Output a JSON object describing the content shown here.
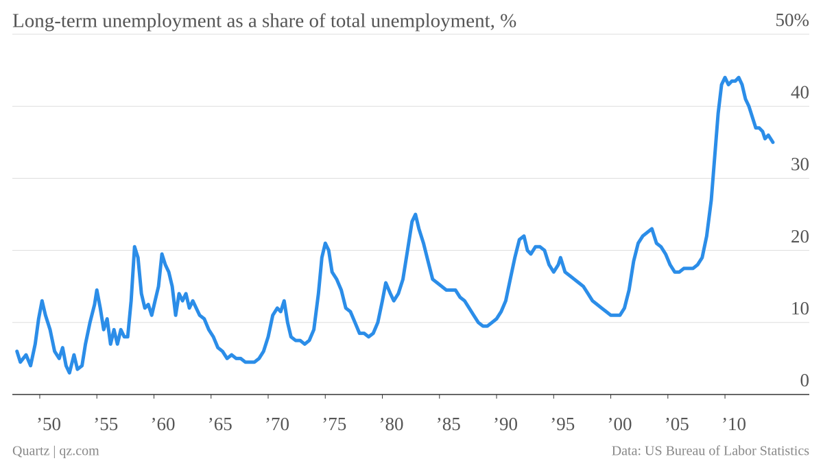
{
  "chart_data": {
    "type": "line",
    "title": "Long-term unemployment as a share of total unemployment, %",
    "source": "Data: US Bureau of Labor Statistics",
    "credit": "Quartz | qz.com",
    "grid": true,
    "xlim": [
      1947.6,
      2014.8
    ],
    "xticks": [
      {
        "value": 1950,
        "label": "’50"
      },
      {
        "value": 1955,
        "label": "’55"
      },
      {
        "value": 1960,
        "label": "’60"
      },
      {
        "value": 1965,
        "label": "’65"
      },
      {
        "value": 1970,
        "label": "’70"
      },
      {
        "value": 1975,
        "label": "’75"
      },
      {
        "value": 1980,
        "label": "’80"
      },
      {
        "value": 1985,
        "label": "’85"
      },
      {
        "value": 1990,
        "label": "’90"
      },
      {
        "value": 1995,
        "label": "’95"
      },
      {
        "value": 2000,
        "label": "’00"
      },
      {
        "value": 2005,
        "label": "’05"
      },
      {
        "value": 2010,
        "label": "’10"
      }
    ],
    "ylim": [
      0,
      50
    ],
    "yticks": [
      0,
      10,
      20,
      30,
      40,
      {
        "value": 50,
        "label": "50%"
      }
    ],
    "x": [
      1948.0,
      1948.3,
      1948.8,
      1949.2,
      1949.6,
      1949.9,
      1950.2,
      1950.5,
      1950.9,
      1951.3,
      1951.7,
      1952.0,
      1952.3,
      1952.6,
      1953.0,
      1953.3,
      1953.7,
      1954.0,
      1954.4,
      1954.8,
      1955.0,
      1955.3,
      1955.6,
      1955.9,
      1956.2,
      1956.5,
      1956.8,
      1957.1,
      1957.4,
      1957.7,
      1958.0,
      1958.3,
      1958.6,
      1958.9,
      1959.2,
      1959.5,
      1959.8,
      1960.1,
      1960.4,
      1960.7,
      1961.0,
      1961.3,
      1961.6,
      1961.9,
      1962.2,
      1962.5,
      1962.8,
      1963.1,
      1963.4,
      1963.7,
      1964.0,
      1964.4,
      1964.8,
      1965.2,
      1965.6,
      1966.0,
      1966.4,
      1966.8,
      1967.2,
      1967.6,
      1968.0,
      1968.4,
      1968.8,
      1969.2,
      1969.6,
      1970.0,
      1970.4,
      1970.8,
      1971.1,
      1971.4,
      1971.7,
      1972.0,
      1972.4,
      1972.8,
      1973.2,
      1973.6,
      1974.0,
      1974.4,
      1974.7,
      1975.0,
      1975.3,
      1975.6,
      1976.0,
      1976.4,
      1976.8,
      1977.2,
      1977.6,
      1978.0,
      1978.4,
      1978.8,
      1979.2,
      1979.6,
      1980.0,
      1980.3,
      1980.7,
      1981.0,
      1981.4,
      1981.8,
      1982.2,
      1982.6,
      1982.9,
      1983.2,
      1983.6,
      1984.0,
      1984.4,
      1984.8,
      1985.2,
      1985.6,
      1986.0,
      1986.4,
      1986.8,
      1987.2,
      1987.6,
      1988.0,
      1988.4,
      1988.8,
      1989.2,
      1989.6,
      1990.0,
      1990.4,
      1990.8,
      1991.2,
      1991.6,
      1992.0,
      1992.4,
      1992.7,
      1993.0,
      1993.4,
      1993.8,
      1994.2,
      1994.6,
      1995.0,
      1995.4,
      1995.6,
      1996.0,
      1996.4,
      1996.8,
      1997.2,
      1997.6,
      1998.0,
      1998.4,
      1998.8,
      1999.2,
      1999.6,
      2000.0,
      2000.4,
      2000.8,
      2001.2,
      2001.6,
      2002.0,
      2002.4,
      2002.8,
      2003.2,
      2003.6,
      2004.0,
      2004.4,
      2004.8,
      2005.2,
      2005.6,
      2006.0,
      2006.4,
      2006.8,
      2007.2,
      2007.6,
      2008.0,
      2008.4,
      2008.8,
      2009.1,
      2009.4,
      2009.7,
      2010.0,
      2010.3,
      2010.6,
      2010.9,
      2011.2,
      2011.5,
      2011.8,
      2012.1,
      2012.4,
      2012.7,
      2013.0,
      2013.3,
      2013.5,
      2013.8,
      2014.2
    ],
    "series": [
      {
        "name": "Long-term unemployment share",
        "color": "#2b8de8",
        "values": [
          6,
          4.5,
          5.5,
          4,
          7,
          10.5,
          13,
          11,
          9,
          6,
          5,
          6.5,
          4,
          3,
          5.5,
          3.5,
          4,
          7,
          10,
          12.5,
          14.5,
          12,
          9,
          10.5,
          7,
          9,
          7,
          9,
          8,
          8,
          13,
          20.5,
          19,
          14,
          12,
          12.5,
          11,
          13,
          15,
          19.5,
          18,
          17,
          15,
          11,
          14,
          13,
          14,
          12,
          13,
          12,
          11,
          10.5,
          9,
          8,
          6.5,
          6,
          5,
          5.5,
          5,
          5,
          4.5,
          4.5,
          4.5,
          5,
          6,
          8,
          11,
          12,
          11.5,
          13,
          10,
          8,
          7.5,
          7.5,
          7,
          7.5,
          9,
          14,
          19,
          21,
          20,
          17,
          16,
          14.5,
          12,
          11.5,
          10,
          8.5,
          8.5,
          8,
          8.5,
          10,
          13,
          15.5,
          14,
          13,
          14,
          16,
          20,
          24,
          25,
          23,
          21,
          18.5,
          16,
          15.5,
          15,
          14.5,
          14.5,
          14.5,
          13.5,
          13,
          12,
          11,
          10,
          9.5,
          9.5,
          10,
          10.5,
          11.5,
          13,
          16,
          19,
          21.5,
          22,
          20,
          19.5,
          20.5,
          20.5,
          20,
          18,
          17,
          18,
          19,
          17,
          16.5,
          16,
          15.5,
          15,
          14,
          13,
          12.5,
          12,
          11.5,
          11,
          11,
          11,
          12,
          14.5,
          18.5,
          21,
          22,
          22.5,
          23,
          21,
          20.5,
          19.5,
          18,
          17,
          17,
          17.5,
          17.5,
          17.5,
          18,
          19,
          22,
          27,
          33,
          39,
          43,
          44,
          43,
          43.5,
          43.5,
          44,
          43,
          41,
          40,
          38.5,
          37,
          37,
          36.5,
          35.5,
          36,
          35
        ]
      }
    ]
  }
}
